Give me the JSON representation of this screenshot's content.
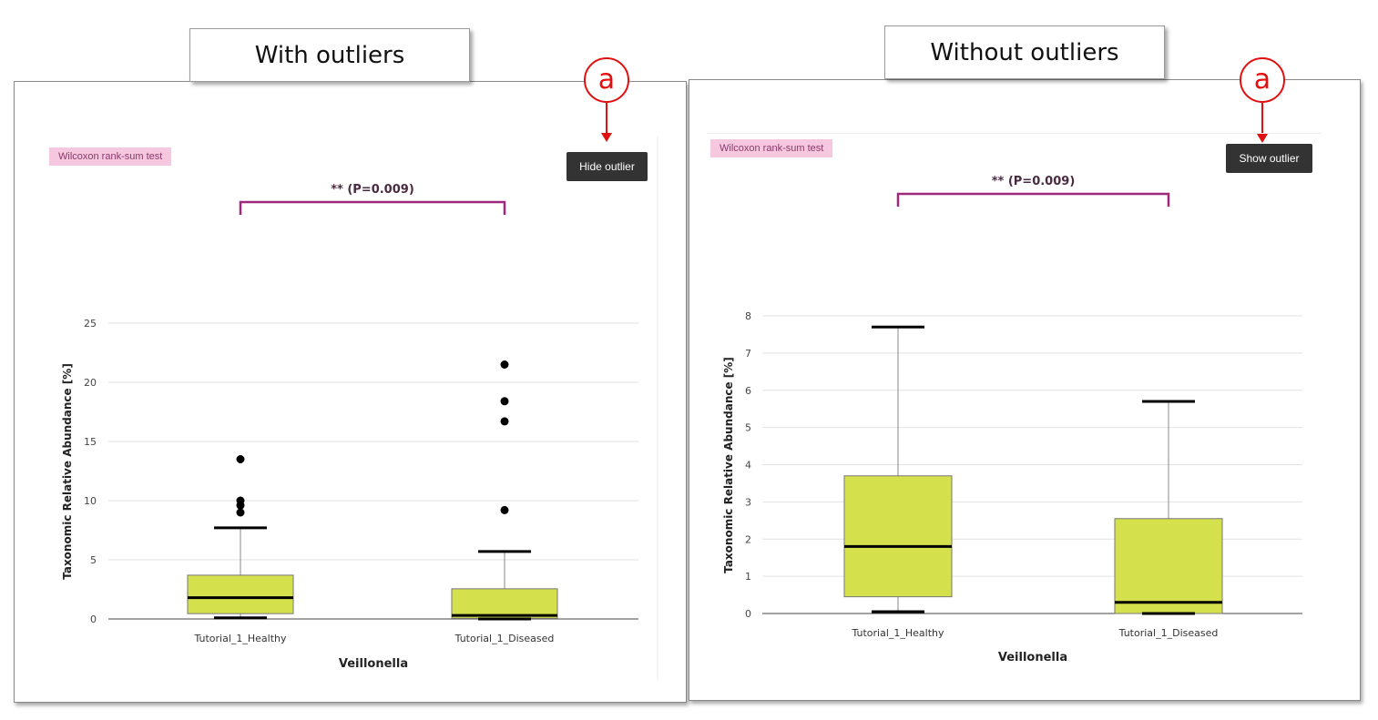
{
  "panels": [
    {
      "caption": "With outliers",
      "marker": "a",
      "test_badge": "Wilcoxon rank-sum test",
      "button_label": "Hide outlier",
      "significance": "** (P=0.009)"
    },
    {
      "caption": "Without outliers",
      "marker": "a",
      "test_badge": "Wilcoxon rank-sum test",
      "button_label": "Show outlier",
      "significance": "** (P=0.009)"
    }
  ],
  "colors": {
    "box_fill": "#d4e04c",
    "bracket": "#a0287a",
    "marker": "#e01010",
    "button_bg": "#333333",
    "badge_bg": "#f6c8e0"
  },
  "chart_data": [
    {
      "type": "box",
      "title": "** (P=0.009)",
      "xlabel": "Veillonella",
      "ylabel": "Taxonomic Relative Abundance [%]",
      "categories": [
        "Tutorial_1_Healthy",
        "Tutorial_1_Diseased"
      ],
      "ylim": [
        0,
        25
      ],
      "yticks": [
        0,
        5,
        10,
        15,
        20,
        25
      ],
      "grid": true,
      "boxes": [
        {
          "name": "Tutorial_1_Healthy",
          "whisker_low": 0.1,
          "q1": 0.45,
          "median": 1.8,
          "q3": 3.7,
          "whisker_high": 7.7,
          "outliers": [
            9.0,
            9.6,
            10.0,
            13.5
          ]
        },
        {
          "name": "Tutorial_1_Diseased",
          "whisker_low": 0.0,
          "q1": 0.05,
          "median": 0.3,
          "q3": 2.55,
          "whisker_high": 5.7,
          "outliers": [
            9.2,
            16.7,
            18.4,
            21.5
          ]
        }
      ]
    },
    {
      "type": "box",
      "title": "** (P=0.009)",
      "xlabel": "Veillonella",
      "ylabel": "Taxonomic Relative Abundance [%]",
      "categories": [
        "Tutorial_1_Healthy",
        "Tutorial_1_Diseased"
      ],
      "ylim": [
        0,
        8
      ],
      "yticks": [
        0,
        1,
        2,
        3,
        4,
        5,
        6,
        7,
        8
      ],
      "grid": true,
      "boxes": [
        {
          "name": "Tutorial_1_Healthy",
          "whisker_low": 0.05,
          "q1": 0.45,
          "median": 1.8,
          "q3": 3.7,
          "whisker_high": 7.7,
          "outliers": []
        },
        {
          "name": "Tutorial_1_Diseased",
          "whisker_low": 0.0,
          "q1": 0.0,
          "median": 0.3,
          "q3": 2.55,
          "whisker_high": 5.7,
          "outliers": []
        }
      ]
    }
  ]
}
